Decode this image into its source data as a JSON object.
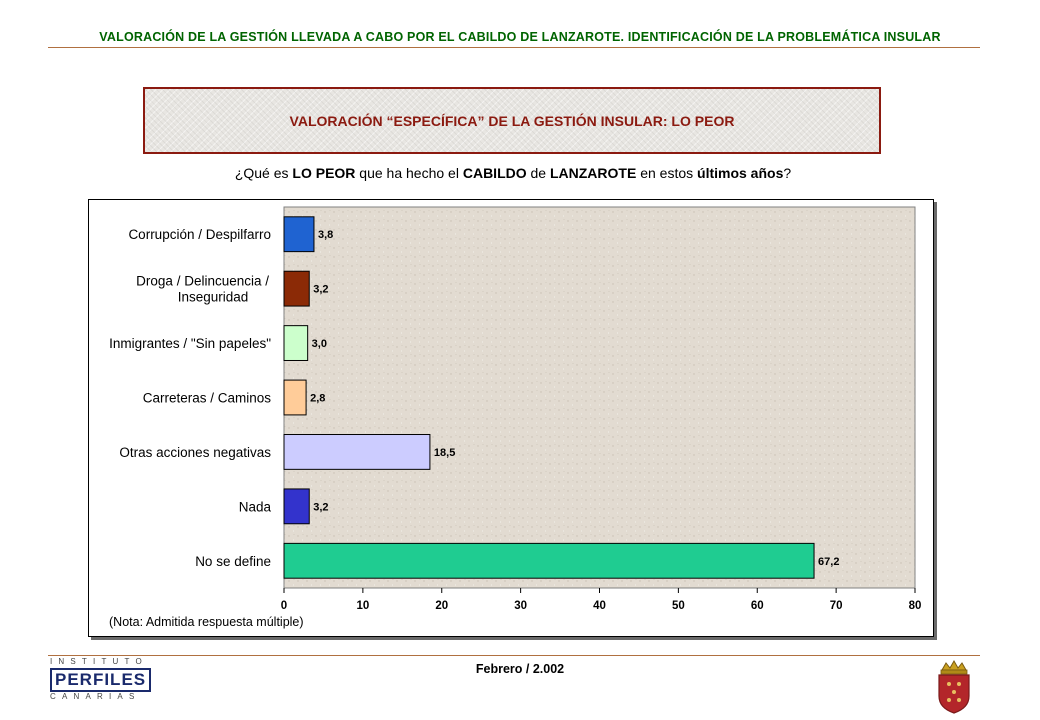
{
  "header": {
    "text": "VALORACIÓN DE LA GESTIÓN LLEVADA A CABO POR EL CABILDO DE LANZAROTE. IDENTIFICACIÓN DE LA PROBLEMÁTICA INSULAR"
  },
  "title": {
    "text": "VALORACIÓN “ESPECÍFICA” DE LA GESTIÓN INSULAR: LO PEOR"
  },
  "question": {
    "p1": "¿Qué es ",
    "b1": "LO PEOR",
    "p2": " que ha hecho el ",
    "b2": "CABILDO",
    "p3": " de ",
    "b3": "LANZAROTE",
    "p4": " en estos ",
    "b4": "últimos años",
    "p5": "?"
  },
  "chart_data": {
    "type": "bar",
    "orientation": "horizontal",
    "categories": [
      "Corrupción / Despilfarro",
      "Droga / Delincuencia / Inseguridad",
      "Inmigrantes / \"Sin papeles\"",
      "Carreteras / Caminos",
      "Otras acciones negativas",
      "Nada",
      "No se define"
    ],
    "values": [
      3.8,
      3.2,
      3.0,
      2.8,
      18.5,
      3.2,
      67.2
    ],
    "value_labels": [
      "3,8",
      "3,2",
      "3,0",
      "2,8",
      "18,5",
      "3,2",
      "67,2"
    ],
    "bar_colors": [
      "#1f63d1",
      "#8b2a06",
      "#ccffcc",
      "#ffcc99",
      "#ccccff",
      "#3333cc",
      "#1fcc91"
    ],
    "xlim": [
      0,
      80
    ],
    "xticks": [
      0,
      10,
      20,
      30,
      40,
      50,
      60,
      70,
      80
    ],
    "grid": false,
    "legend": "none",
    "note": "(Nota: Admitida respuesta múltiple)"
  },
  "footer": {
    "date": "Febrero / 2.002",
    "logo_top": "INSTITUTO",
    "logo_mid": "PERFILES",
    "logo_bottom": "CANARIAS"
  },
  "colors": {
    "header_text": "#006400",
    "title_text": "#8b1a10",
    "rule": "#b07040"
  }
}
